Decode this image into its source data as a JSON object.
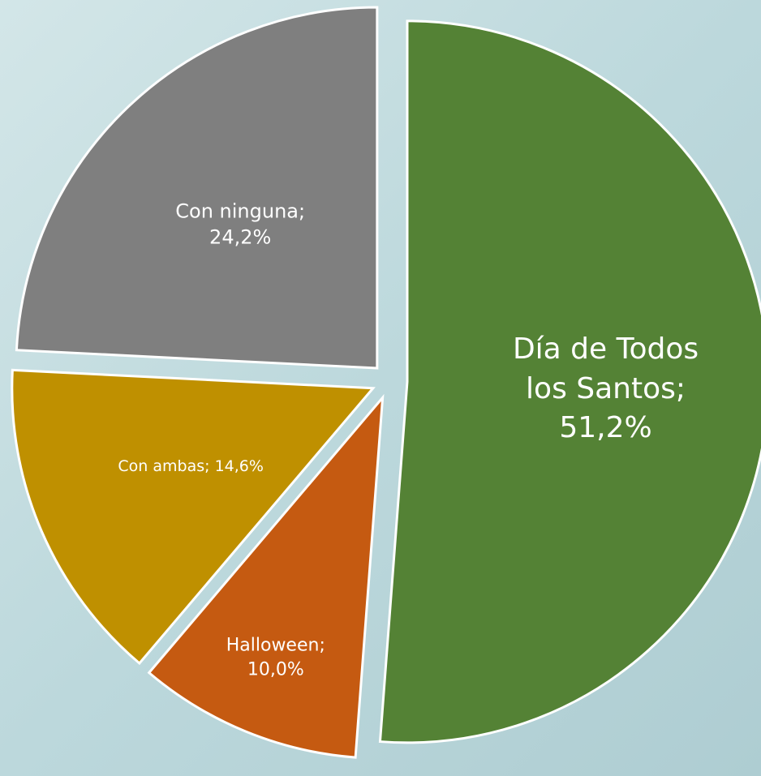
{
  "chart_data": {
    "type": "pie",
    "categories": [
      "Día de Todos los Santos;",
      "Halloween;",
      "Con ambas;",
      "Con ninguna;"
    ],
    "values": [
      51.2,
      10.0,
      14.6,
      24.2
    ],
    "value_labels": [
      "51,2%",
      "10,0%",
      "14,6%",
      "24,2%"
    ],
    "colors": [
      "#548235",
      "#c55a11",
      "#bf9000",
      "#7f7f7f"
    ]
  }
}
